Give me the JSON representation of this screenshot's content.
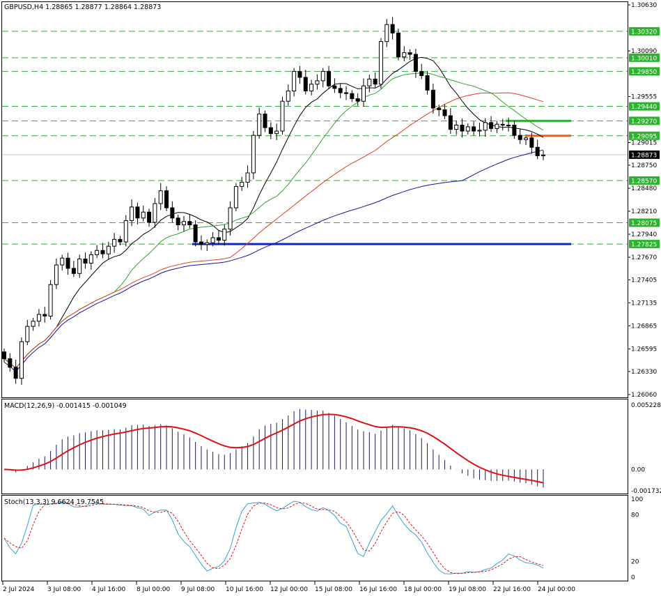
{
  "header": "GBPUSD,H4  1.28865 1.28877 1.28864 1.28873",
  "macd_label": "MACD(12,26,9) -0.001415 -0.001049",
  "stoch_label": "Stoch(13,3,3) 9.6624 19.7545",
  "colors": {
    "bull": "#ffffff",
    "bear": "#000000",
    "ma_black": "#000000",
    "ma_green": "#2ca52c",
    "ma_red": "#e0401c",
    "ma_blue": "#1414a0",
    "level_green": "#2bb32b",
    "support_blue": "#0a28d2",
    "resist_red": "#ff5a14",
    "macd_signal": "#e01010",
    "stoch_main": "#3aa0d8",
    "stoch_signal": "#e01010"
  },
  "chart_data": {
    "type": "candlestick",
    "symbol": "GBPUSD",
    "timeframe": "H4",
    "last_price": "1.28873",
    "y_ticks": [
      "1.30630",
      "1.30090",
      "1.29555",
      "1.29015",
      "1.28750",
      "1.28480",
      "1.28210",
      "1.27940",
      "1.27670",
      "1.27405",
      "1.27135",
      "1.26865",
      "1.26595",
      "1.26330",
      "1.26060"
    ],
    "levels": [
      {
        "label": "1.30320",
        "value": 1.3032
      },
      {
        "label": "1.30010",
        "value": 1.3001
      },
      {
        "label": "1.29850",
        "value": 1.2985
      },
      {
        "label": "1.29440",
        "value": 1.2944
      },
      {
        "label": "1.29270",
        "value": 1.2927
      },
      {
        "label": "1.29095",
        "value": 1.29095
      },
      {
        "label": "1.28570",
        "value": 1.2857
      },
      {
        "label": "1.28075",
        "value": 1.28075
      },
      {
        "label": "1.27825",
        "value": 1.27825
      }
    ],
    "x_labels": [
      "2 Jul 2024",
      "3 Jul 08:00",
      "4 Jul 16:00",
      "8 Jul 00:00",
      "9 Jul 08:00",
      "10 Jul 16:00",
      "12 Jul 00:00",
      "15 Jul 08:00",
      "16 Jul 16:00",
      "18 Jul 00:00",
      "19 Jul 08:00",
      "22 Jul 16:00",
      "24 Jul 00:00"
    ],
    "closes": [
      1.2648,
      1.2638,
      1.2625,
      1.2668,
      1.2686,
      1.2692,
      1.27,
      1.2698,
      1.2735,
      1.2758,
      1.2766,
      1.2754,
      1.2748,
      1.2765,
      1.276,
      1.277,
      1.2775,
      1.2771,
      1.278,
      1.2788,
      1.2785,
      1.281,
      1.2826,
      1.2813,
      1.282,
      1.2808,
      1.283,
      1.2845,
      1.2825,
      1.2813,
      1.2805,
      1.2809,
      1.2805,
      1.2785,
      1.2782,
      1.2784,
      1.279,
      1.2787,
      1.28,
      1.2825,
      1.285,
      1.2855,
      1.2866,
      1.291,
      1.2935,
      1.2919,
      1.2912,
      1.2915,
      1.295,
      1.2962,
      1.2985,
      1.2978,
      1.2962,
      1.297,
      1.2974,
      1.2985,
      1.2968,
      1.2965,
      1.296,
      1.2959,
      1.2953,
      1.295,
      1.2968,
      1.2976,
      1.297,
      1.302,
      1.304,
      1.303,
      1.3002,
      1.3007,
      1.3005,
      1.2985,
      1.298,
      1.2963,
      1.2942,
      1.294,
      1.2933,
      1.2917,
      1.2922,
      1.2915,
      1.292,
      1.2915,
      1.2916,
      1.2925,
      1.2918,
      1.2923,
      1.2922,
      1.2922,
      1.291,
      1.2905,
      1.2907,
      1.2896,
      1.2886,
      1.2887
    ],
    "macd": {
      "range": [
        -0.001732,
        0.005228
      ],
      "ticks": [
        "0.005228",
        "0.00",
        "-0.001732"
      ]
    },
    "stoch": {
      "range": [
        0,
        100
      ],
      "ticks": [
        "100",
        "80",
        "20",
        "0"
      ]
    }
  }
}
